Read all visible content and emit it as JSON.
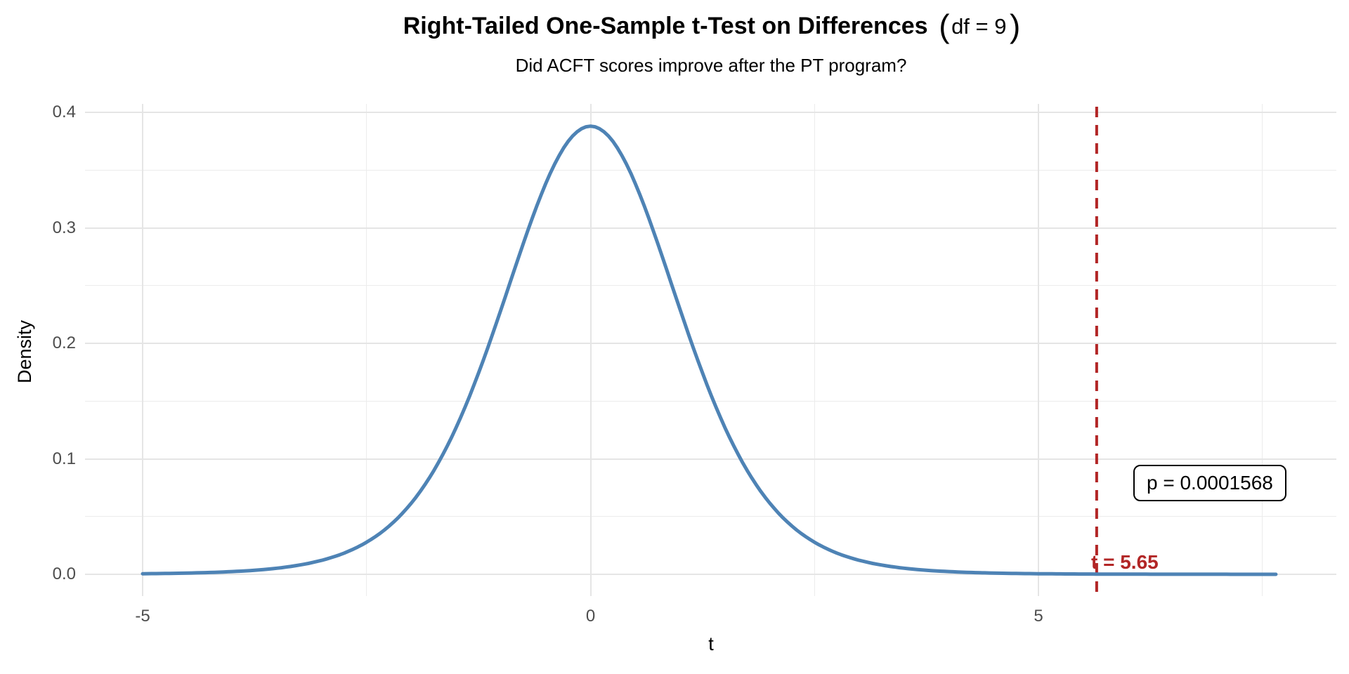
{
  "title": {
    "main": "Right-Tailed One-Sample t-Test on Differences",
    "open_paren": "(",
    "df": "df = 9",
    "close_paren": ")"
  },
  "subtitle": "Did ACFT scores improve after the PT program?",
  "axes": {
    "x": {
      "label": "t",
      "ticks": [
        {
          "value": -5,
          "label": "-5"
        },
        {
          "value": 0,
          "label": "0"
        },
        {
          "value": 5,
          "label": "5"
        }
      ],
      "minor": [
        -2.5,
        2.5,
        7.5
      ]
    },
    "y": {
      "label": "Density",
      "ticks": [
        {
          "value": 0.0,
          "label": "0.0"
        },
        {
          "value": 0.1,
          "label": "0.1"
        },
        {
          "value": 0.2,
          "label": "0.2"
        },
        {
          "value": 0.3,
          "label": "0.3"
        },
        {
          "value": 0.4,
          "label": "0.4"
        }
      ],
      "minor": [
        0.05,
        0.15,
        0.25,
        0.35
      ]
    }
  },
  "annotations": {
    "vline": {
      "t": 5.65,
      "label": "t = 5.65",
      "color": "#b22626"
    },
    "p_box": {
      "label": "p = 0.0001568"
    }
  },
  "chart_data": {
    "type": "line",
    "title": "Right-Tailed One-Sample t-Test on Differences (df = 9)",
    "subtitle": "Did ACFT scores improve after the PT program?",
    "xlabel": "t",
    "ylabel": "Density",
    "distribution": "t-distribution density",
    "df": 9,
    "curve_x_range": [
      -5,
      7.65
    ],
    "peak_density": 0.388,
    "t_statistic": 5.65,
    "p_value": 0.0001568,
    "x_ticks": [
      -5,
      0,
      5
    ],
    "y_ticks": [
      0.0,
      0.1,
      0.2,
      0.3,
      0.4
    ],
    "xlim": [
      -5.63,
      8.28
    ],
    "ylim": [
      -0.019,
      0.407
    ],
    "grid": true,
    "legend": false,
    "curve_color": "#4e83b5",
    "vline_color": "#b22626",
    "points": [
      {
        "t": -5.0,
        "density": 0.0005
      },
      {
        "t": -4.5,
        "density": 0.0011
      },
      {
        "t": -4.0,
        "density": 0.0023
      },
      {
        "t": -3.5,
        "density": 0.0053
      },
      {
        "t": -3.0,
        "density": 0.0121
      },
      {
        "t": -2.5,
        "density": 0.0278
      },
      {
        "t": -2.0,
        "density": 0.0617
      },
      {
        "t": -1.5,
        "density": 0.1271
      },
      {
        "t": -1.0,
        "density": 0.2291
      },
      {
        "t": -0.5,
        "density": 0.3383
      },
      {
        "t": 0.0,
        "density": 0.388
      },
      {
        "t": 0.5,
        "density": 0.3383
      },
      {
        "t": 1.0,
        "density": 0.2291
      },
      {
        "t": 1.5,
        "density": 0.1271
      },
      {
        "t": 2.0,
        "density": 0.0617
      },
      {
        "t": 2.5,
        "density": 0.0278
      },
      {
        "t": 3.0,
        "density": 0.0121
      },
      {
        "t": 3.5,
        "density": 0.0053
      },
      {
        "t": 4.0,
        "density": 0.0023
      },
      {
        "t": 4.5,
        "density": 0.0011
      },
      {
        "t": 5.0,
        "density": 0.0005
      },
      {
        "t": 5.65,
        "density": 0.0002
      },
      {
        "t": 6.5,
        "density": 0.0001
      },
      {
        "t": 7.65,
        "density": 0.0
      }
    ]
  }
}
